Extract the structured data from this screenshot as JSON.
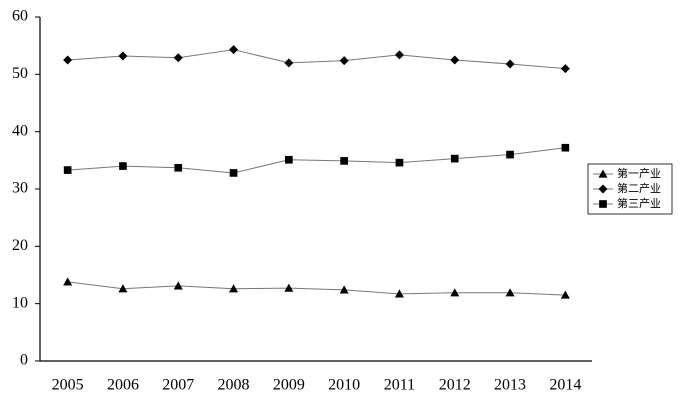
{
  "chart_data": {
    "type": "line",
    "categories": [
      "2005",
      "2006",
      "2007",
      "2008",
      "2009",
      "2010",
      "2011",
      "2012",
      "2013",
      "2014"
    ],
    "series": [
      {
        "name": "第一产业",
        "color": "#000000",
        "marker": "triangle",
        "values": [
          13.8,
          12.6,
          13.1,
          12.6,
          12.7,
          12.4,
          11.7,
          11.9,
          11.9,
          11.5
        ]
      },
      {
        "name": "第二产业",
        "color": "#000000",
        "marker": "diamond",
        "values": [
          52.5,
          53.2,
          52.9,
          54.3,
          52.0,
          52.4,
          53.4,
          52.5,
          51.8,
          51.0
        ]
      },
      {
        "name": "第三产业",
        "color": "#000000",
        "marker": "square",
        "values": [
          33.3,
          34.0,
          33.7,
          32.8,
          35.1,
          34.9,
          34.6,
          35.3,
          36.0,
          37.2
        ]
      }
    ],
    "ylim": [
      0,
      60
    ],
    "yticks": [
      0,
      10,
      20,
      30,
      40,
      50,
      60
    ],
    "grid": false,
    "legend": "right"
  }
}
